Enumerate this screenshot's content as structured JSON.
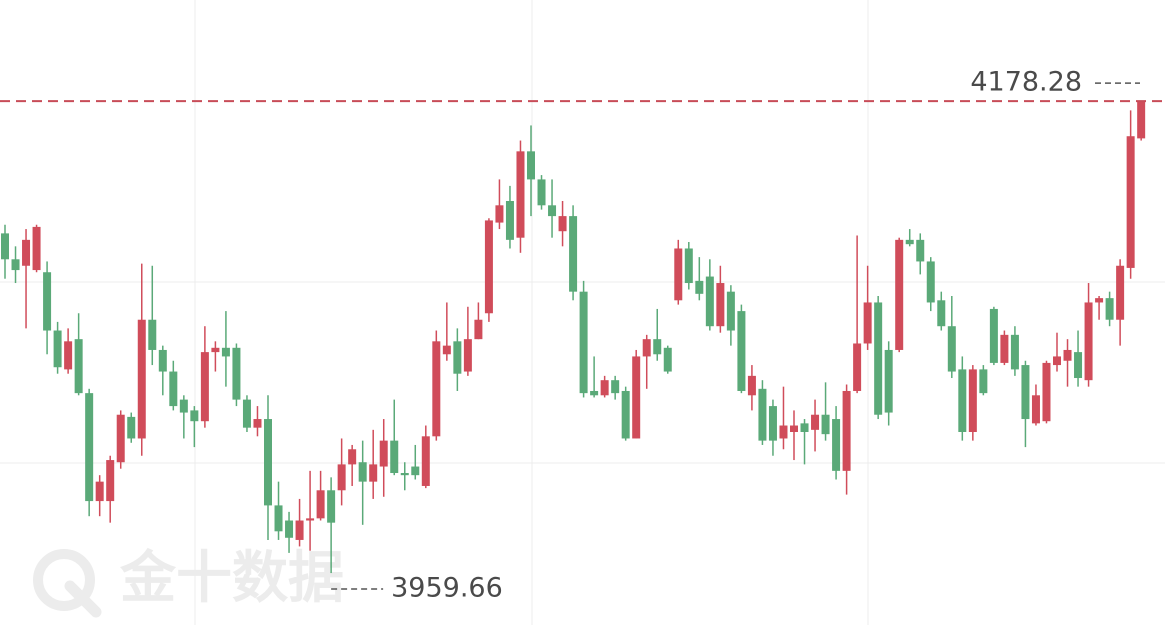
{
  "chart_data": {
    "type": "candlestick",
    "open": [
      4117,
      4105,
      4102,
      4100,
      4099,
      4072,
      4054,
      4068,
      4043,
      3993,
      3993,
      4011,
      4032,
      4022,
      4077,
      4063,
      4053,
      4040,
      4035,
      4030,
      4062,
      4064,
      4064,
      4040,
      4027,
      4031,
      3991,
      3984,
      3975,
      3984,
      3985,
      3998,
      3998,
      4010,
      4011,
      4002,
      4009,
      4021,
      4006,
      4009,
      4000,
      4023,
      4061,
      4067,
      4053,
      4068,
      4080,
      4122,
      4132,
      4115,
      4155,
      4142,
      4130,
      4118,
      4125,
      4090,
      4044,
      4042,
      4049,
      4044,
      4022,
      4060,
      4068,
      4064,
      4086,
      4110,
      4095,
      4097,
      4074,
      4090,
      4081,
      4042,
      4045,
      4037,
      4022,
      4025,
      4029,
      4026,
      4033,
      4031,
      4007,
      4044,
      4066,
      4085,
      4063,
      4063,
      4114,
      4114,
      4104,
      4086,
      4074,
      4054,
      4025,
      4054,
      4082,
      4057,
      4070,
      4056,
      4029,
      4030,
      4056,
      4058,
      4062,
      4049,
      4085,
      4087,
      4077,
      4101,
      4161
    ],
    "high": [
      4121,
      4111,
      4119,
      4121,
      4104,
      4076,
      4073,
      4080,
      4045,
      4005,
      4014,
      4035,
      4034,
      4103,
      4102,
      4065,
      4058,
      4042,
      4037,
      4074,
      4067,
      4081,
      4066,
      4042,
      4037,
      4042,
      4002,
      3988,
      3994,
      4007,
      4007,
      4004,
      4022,
      4019,
      4021,
      4026,
      4031,
      4040,
      4011,
      4019,
      4028,
      4072,
      4085,
      4073,
      4083,
      4085,
      4124,
      4142,
      4139,
      4160,
      4167,
      4144,
      4142,
      4132,
      4130,
      4095,
      4060,
      4051,
      4051,
      4046,
      4063,
      4070,
      4082,
      4065,
      4114,
      4113,
      4106,
      4105,
      4102,
      4093,
      4084,
      4056,
      4049,
      4040,
      4046,
      4035,
      4031,
      4040,
      4048,
      4037,
      4047,
      4116,
      4102,
      4088,
      4067,
      4115,
      4119,
      4117,
      4106,
      4090,
      4088,
      4060,
      4056,
      4056,
      4083,
      4072,
      4074,
      4058,
      4047,
      4058,
      4071,
      4068,
      4072,
      4094,
      4088,
      4090,
      4105,
      4174,
      4178.28
    ],
    "low": [
      4096,
      4094,
      4073,
      4099,
      4061,
      4052,
      4052,
      4042,
      3986,
      3986,
      3983,
      4008,
      4020,
      4014,
      4056,
      4042,
      4035,
      4022,
      4018,
      4027,
      4053,
      4046,
      4037,
      4025,
      4023,
      3975,
      3975,
      3969,
      3972,
      3970,
      3984,
      3959.66,
      3991,
      4000,
      3982,
      3994,
      3995,
      4005,
      3998,
      4003,
      3999,
      4021,
      4058,
      4044,
      4051,
      4068,
      4076,
      4119,
      4110,
      4108,
      4125,
      4128,
      4115,
      4111,
      4086,
      4041,
      4041,
      4041,
      4040,
      4021,
      4022,
      4045,
      4058,
      4052,
      4084,
      4091,
      4086,
      4072,
      4071,
      4065,
      4043,
      4035,
      4019,
      4014,
      4017,
      4012,
      4010,
      4016,
      4021,
      4003,
      3996,
      4043,
      4063,
      4031,
      4028,
      4062,
      4111,
      4098,
      4081,
      4072,
      4050,
      4021,
      4021,
      4042,
      4056,
      4056,
      4051,
      4018,
      4028,
      4029,
      4053,
      4046,
      4046,
      4046,
      4077,
      4074,
      4065,
      4096,
      4160
    ],
    "close": [
      4105,
      4100,
      4114,
      4120,
      4072,
      4055,
      4067,
      4043,
      3993,
      4002,
      4012,
      4033,
      4022,
      4077,
      4063,
      4053,
      4037,
      4034,
      4030,
      4062,
      4064,
      4060,
      4040,
      4027,
      4031,
      3991,
      3979,
      3976,
      3984,
      3985,
      3998,
      3983,
      4010,
      4017,
      4002,
      4010,
      4021,
      4006,
      4005,
      4005,
      4023,
      4067,
      4065,
      4052,
      4068,
      4077,
      4123,
      4130,
      4114,
      4155,
      4142,
      4130,
      4125,
      4125,
      4090,
      4043,
      4042,
      4049,
      4043,
      4022,
      4060,
      4068,
      4061,
      4053,
      4110,
      4094,
      4089,
      4074,
      4094,
      4072,
      4044,
      4051,
      4021,
      4021,
      4028,
      4028,
      4025,
      4033,
      4024,
      4007,
      4044,
      4066,
      4085,
      4033,
      4034,
      4114,
      4112,
      4104,
      4085,
      4074,
      4053,
      4025,
      4054,
      4043,
      4057,
      4070,
      4054,
      4031,
      4042,
      4057,
      4060,
      4063,
      4050,
      4085,
      4087,
      4077,
      4102,
      4162,
      4178.28
    ],
    "up_color": "#d04c5a",
    "down_color": "#5aa978",
    "ylim": [
      3935.6,
      4225.1
    ],
    "high_marker": 4178.28,
    "low_marker": 3959.66,
    "marker_color": "#c84c58",
    "watermark": "金十数据"
  }
}
